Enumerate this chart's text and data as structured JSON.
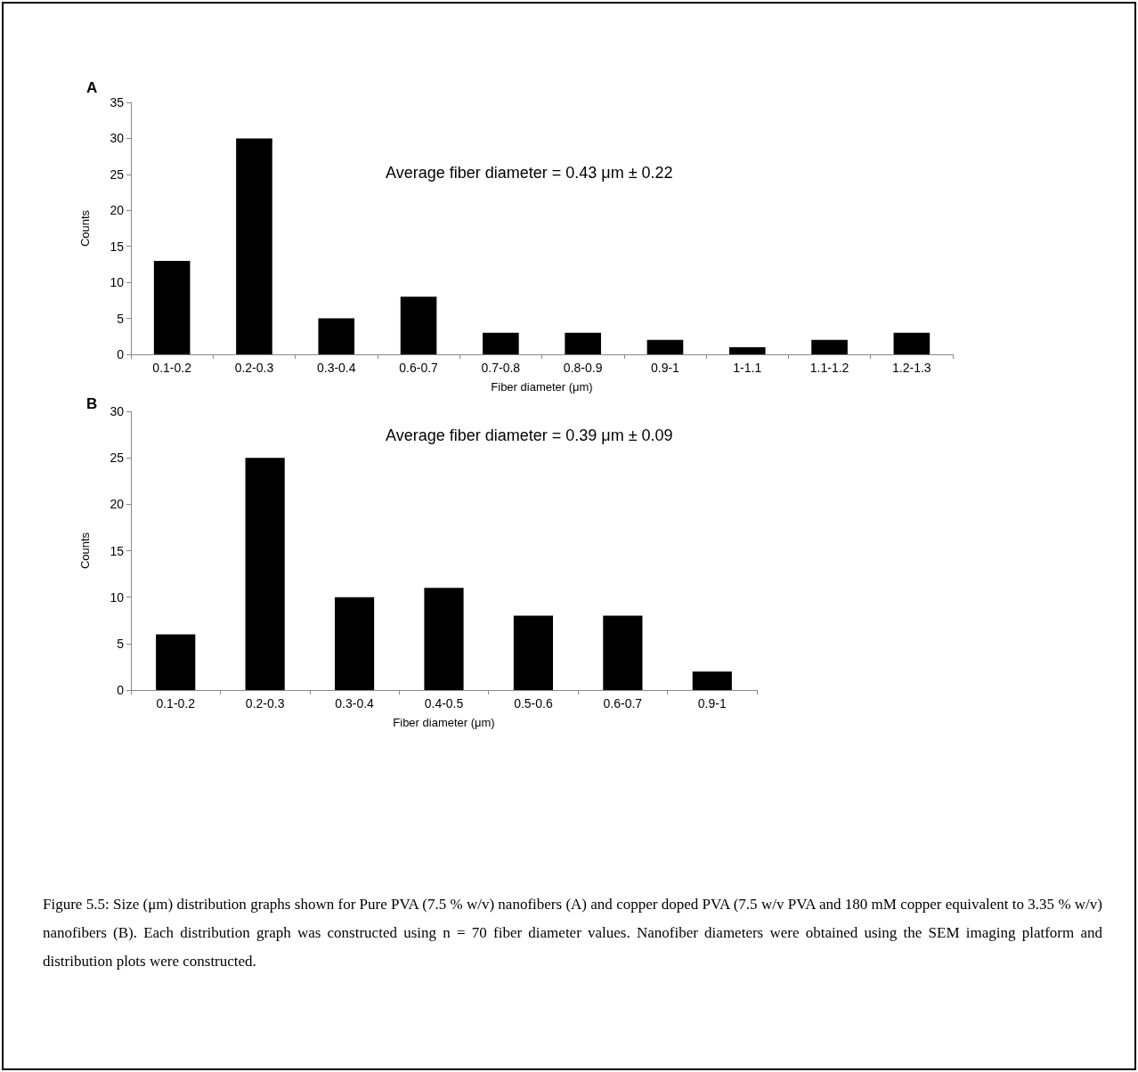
{
  "chart_data": [
    {
      "type": "bar",
      "title": "A",
      "xlabel": "Fiber diameter (μm)",
      "ylabel": "Counts",
      "categories": [
        "0.1-0.2",
        "0.2-0.3",
        "0.3-0.4",
        "0.6-0.7",
        "0.7-0.8",
        "0.8-0.9",
        "0.9-1",
        "1-1.1",
        "1.1-1.2",
        "1.2-1.3"
      ],
      "values": [
        13,
        30,
        5,
        8,
        3,
        3,
        2,
        1,
        2,
        3
      ],
      "color": "#000000",
      "ylim": [
        0,
        35
      ],
      "yticks": [
        0,
        5,
        10,
        15,
        20,
        25,
        30,
        35
      ],
      "grid": false,
      "annotations": [
        "Average fiber diameter = 0.43 μm ± 0.22"
      ]
    },
    {
      "type": "bar",
      "title": "B",
      "xlabel": "Fiber diameter (μm)",
      "ylabel": "Counts",
      "categories": [
        "0.1-0.2",
        "0.2-0.3",
        "0.3-0.4",
        "0.4-0.5",
        "0.5-0.6",
        "0.6-0.7",
        "0.9-1"
      ],
      "values": [
        6,
        25,
        10,
        11,
        8,
        8,
        2
      ],
      "color": "#000000",
      "ylim": [
        0,
        30
      ],
      "yticks": [
        0,
        5,
        10,
        15,
        20,
        25,
        30
      ],
      "grid": false,
      "annotations": [
        "Average fiber diameter = 0.39 μm ± 0.09",
        "Figure 5.5: Size (μm) distribution graphs shown for Pure PVA (7.5 % w/v) nanofibers (A) and copper doped PVA (7.5 w/v PVA and 180 mM copper equivalent to 3.35 % w/v) nanofibers (B). Each distribution graph was constructed using n = 70 fiber diameter values. Nanofiber diameters were obtained using the SEM imaging platform and distribution plots were constructed."
      ]
    }
  ]
}
